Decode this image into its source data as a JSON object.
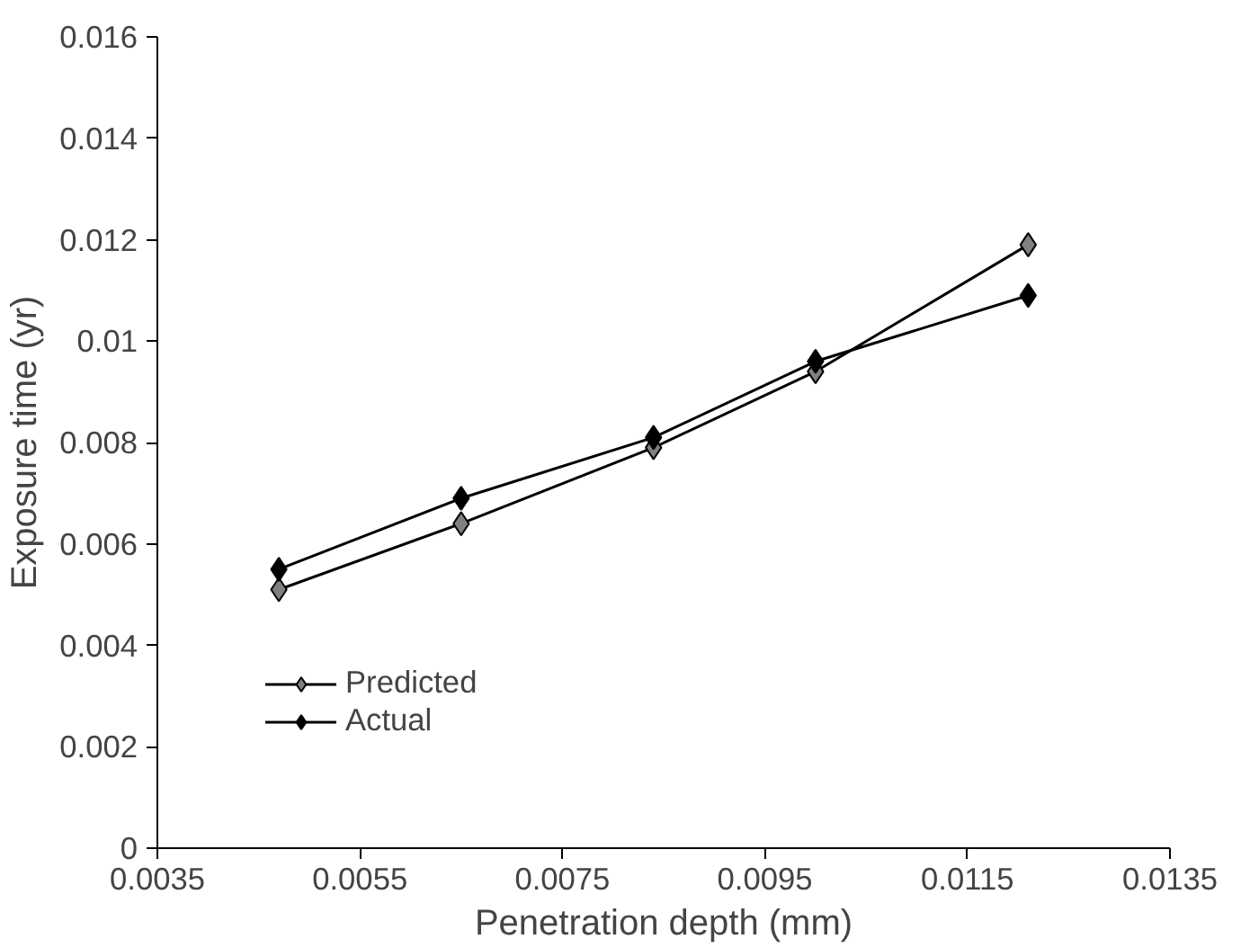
{
  "chart_data": {
    "type": "line",
    "xlabel": "Penetration depth (mm)",
    "ylabel": "Exposure time (yr)",
    "x": [
      0.0047,
      0.0065,
      0.0084,
      0.01,
      0.0121
    ],
    "series": [
      {
        "name": "Predicted",
        "color": "#808080",
        "values": [
          0.0051,
          0.0064,
          0.0079,
          0.0094,
          0.0119
        ]
      },
      {
        "name": "Actual",
        "color": "#000000",
        "values": [
          0.0055,
          0.0069,
          0.0081,
          0.0096,
          0.0109
        ]
      }
    ],
    "xlim": [
      0.0035,
      0.0135
    ],
    "xticks": [
      0.0035,
      0.0055,
      0.0075,
      0.0095,
      0.0115,
      0.0135
    ],
    "ylim": [
      0,
      0.016
    ],
    "yticks": [
      0,
      0.002,
      0.004,
      0.006,
      0.008,
      0.01,
      0.012,
      0.014,
      0.016
    ],
    "grid": false,
    "legend": "bottom left",
    "marker": "diamond",
    "line_style": "solid"
  }
}
